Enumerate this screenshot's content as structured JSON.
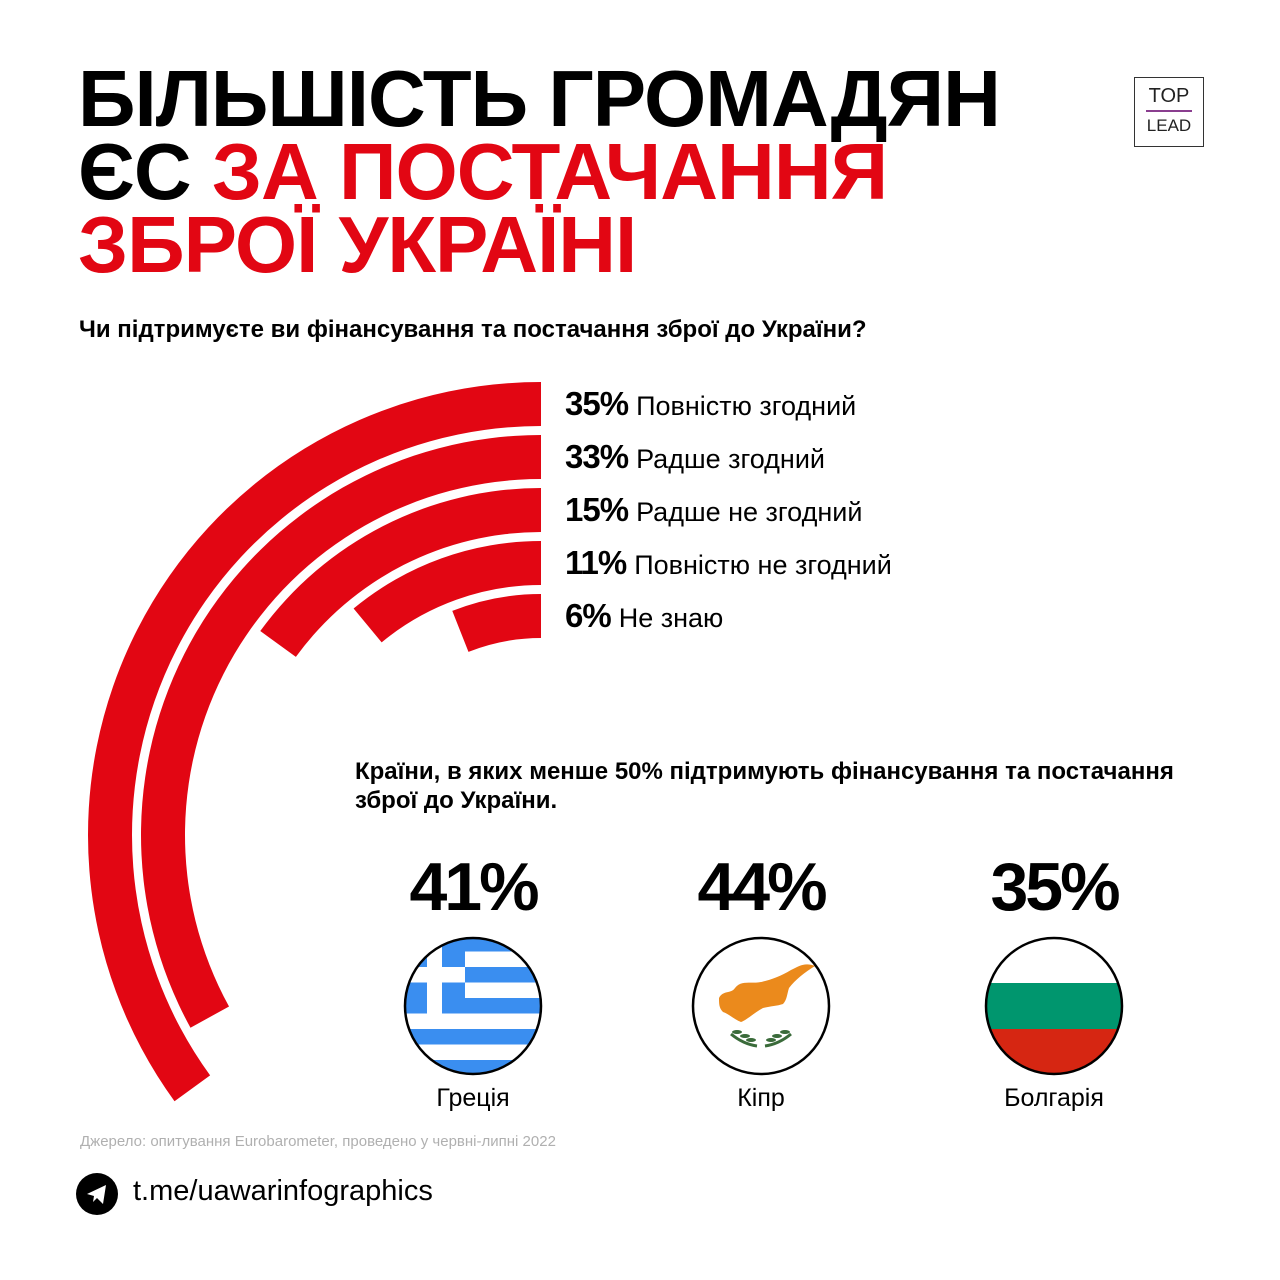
{
  "title": {
    "line1": "БІЛЬШІСТЬ ГРОМАДЯН",
    "line2_black": "ЄС ",
    "line2_red": "ЗА ПОСТАЧАННЯ",
    "line3": "ЗБРОЇ УКРАЇНІ"
  },
  "logo": {
    "top": "TOP",
    "bottom": "LEAD"
  },
  "colors": {
    "accent": "#e20613",
    "text": "#000000",
    "muted": "#b0b0b0"
  },
  "chart_data": {
    "type": "radial-bar",
    "title": "Чи підтримуєте ви фінансування та постачання зброї до України?",
    "unit": "%",
    "full_scale": 100,
    "categories": [
      "Повністю згодний",
      "Радше згодний",
      "Радше не згодний",
      "Повністю не згодний",
      "Не знаю"
    ],
    "values": [
      35,
      33,
      15,
      11,
      6
    ],
    "value_labels": [
      "35%",
      "33%",
      "15%",
      "11%",
      "6%"
    ]
  },
  "countries": {
    "heading": "Країни, в яких менше 50% підтримують фінансування та постачання зброї до України.",
    "items": [
      {
        "name": "Греція",
        "value": "41%",
        "flag": "greece-flag"
      },
      {
        "name": "Кіпр",
        "value": "44%",
        "flag": "cyprus-flag"
      },
      {
        "name": "Болгарія",
        "value": "35%",
        "flag": "bulgaria-flag"
      }
    ]
  },
  "footer": {
    "source": "Джерело: опитування Eurobarometer, проведено у червні-липні 2022",
    "link": "t.me/uawarinfographics",
    "icon": "telegram-icon"
  }
}
